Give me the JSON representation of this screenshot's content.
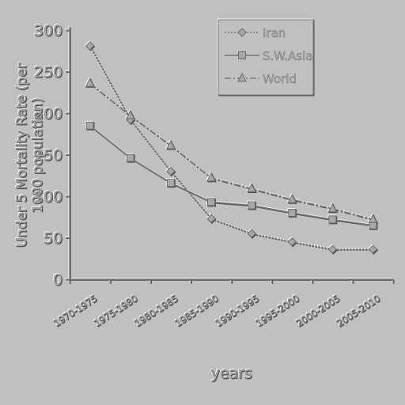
{
  "chart_data": {
    "type": "line",
    "title": "",
    "xlabel": "years",
    "ylabel": "Under 5 Mortality Rate (per 1000 population)",
    "ylabel_lines": [
      "Under 5 Mortality Rate (per",
      "1000 population)"
    ],
    "ylim": [
      0,
      300
    ],
    "yticks": [
      0,
      50,
      100,
      150,
      200,
      250,
      300
    ],
    "grid": false,
    "legend_position": "top-right",
    "categories": [
      "1970-1975",
      "1975-1980",
      "1980-1985",
      "1985-1990",
      "1990-1995",
      "1995-2000",
      "2000-2005",
      "2005-2010"
    ],
    "series": [
      {
        "name": "Iran",
        "marker": "diamond",
        "dash": "2,2",
        "values": [
          281,
          192,
          130,
          73,
          55,
          45,
          36,
          36
        ]
      },
      {
        "name": "S.W.Asia",
        "marker": "square",
        "dash": "",
        "values": [
          185,
          146,
          116,
          93,
          89,
          80,
          72,
          65
        ]
      },
      {
        "name": "World",
        "marker": "triangle",
        "dash": "8,3,2,3",
        "values": [
          236,
          197,
          161,
          122,
          109,
          96,
          85,
          72
        ]
      }
    ]
  }
}
